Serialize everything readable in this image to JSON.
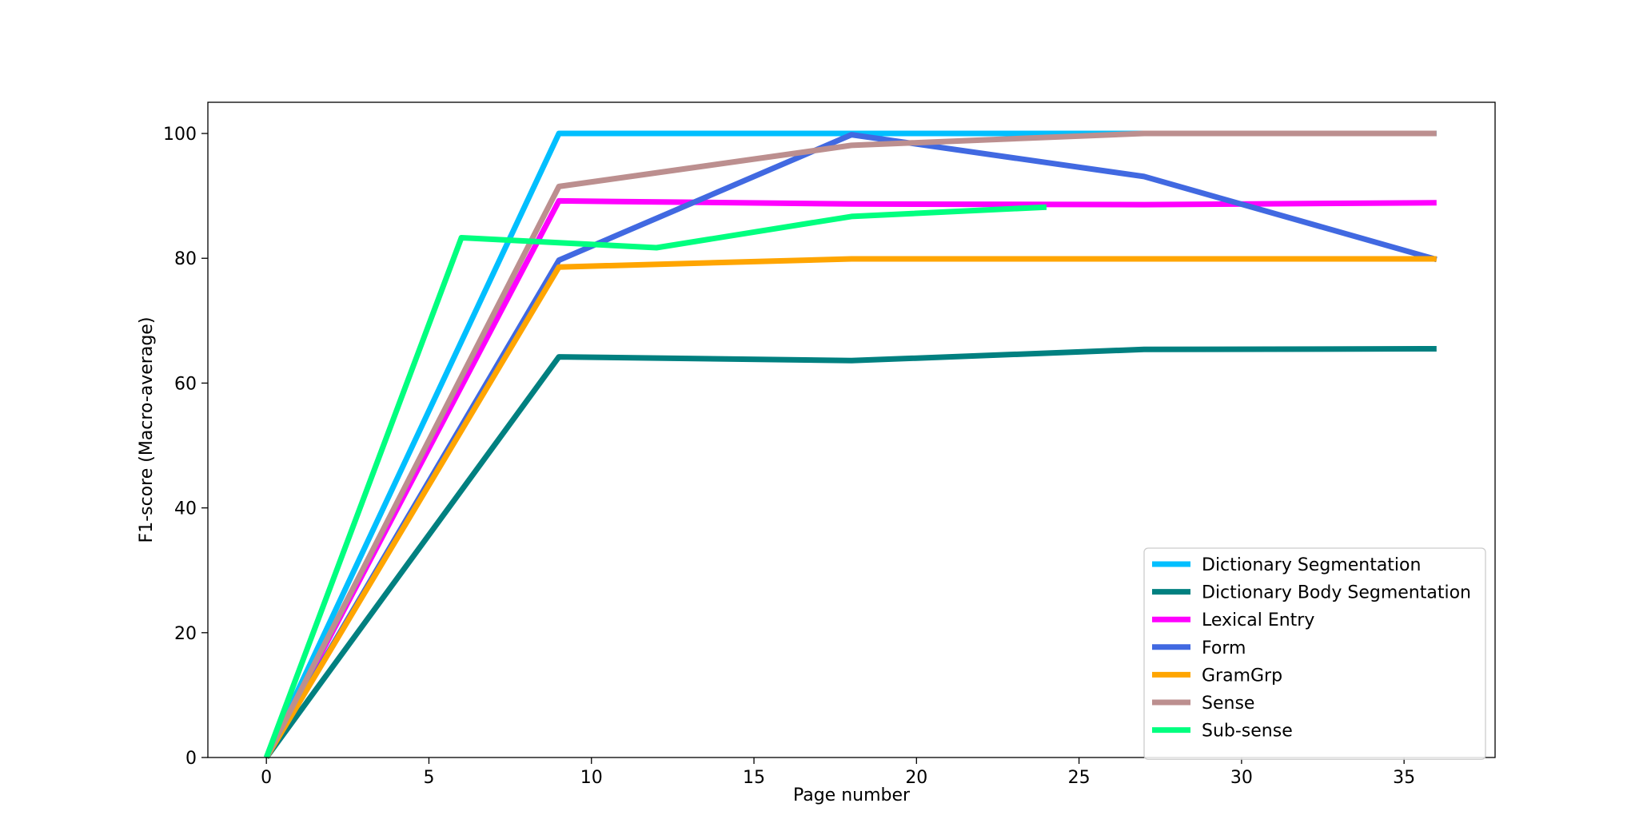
{
  "chart_data": {
    "type": "line",
    "title": "",
    "xlabel": "Page number",
    "ylabel": "F1-score (Macro-average)",
    "xlim": [
      -1.8,
      37.8
    ],
    "ylim": [
      0,
      105
    ],
    "xticks": [
      0,
      5,
      10,
      15,
      20,
      25,
      30,
      35
    ],
    "yticks": [
      0,
      20,
      40,
      60,
      80,
      100
    ],
    "grid": false,
    "legend_position": "lower-right",
    "series": [
      {
        "name": "Dictionary Segmentation",
        "color": "#00BFFF",
        "x": [
          0,
          9,
          18,
          27,
          36
        ],
        "y": [
          0,
          100,
          100,
          100,
          100
        ]
      },
      {
        "name": "Dictionary Body Segmentation",
        "color": "#008080",
        "x": [
          0,
          9,
          18,
          27,
          36
        ],
        "y": [
          0,
          64.2,
          63.6,
          65.4,
          65.5
        ]
      },
      {
        "name": "Lexical Entry",
        "color": "#FF00FF",
        "x": [
          0,
          9,
          18,
          27,
          36
        ],
        "y": [
          0,
          89.2,
          88.7,
          88.6,
          88.9
        ]
      },
      {
        "name": "Form",
        "color": "#4169E1",
        "x": [
          0,
          9,
          18,
          27,
          36
        ],
        "y": [
          0,
          79.7,
          99.8,
          93.1,
          79.8
        ]
      },
      {
        "name": "GramGrp",
        "color": "#FFA500",
        "x": [
          0,
          9,
          18,
          27,
          36
        ],
        "y": [
          0,
          78.6,
          79.9,
          79.9,
          79.9
        ]
      },
      {
        "name": "Sense",
        "color": "#BC8F8F",
        "x": [
          0,
          9,
          18,
          27,
          36
        ],
        "y": [
          0,
          91.5,
          98.1,
          100,
          100
        ]
      },
      {
        "name": "Sub-sense",
        "color": "#00FF7F",
        "x": [
          0,
          6,
          12,
          18,
          24
        ],
        "y": [
          0,
          83.3,
          81.7,
          86.7,
          88.2
        ]
      }
    ]
  }
}
